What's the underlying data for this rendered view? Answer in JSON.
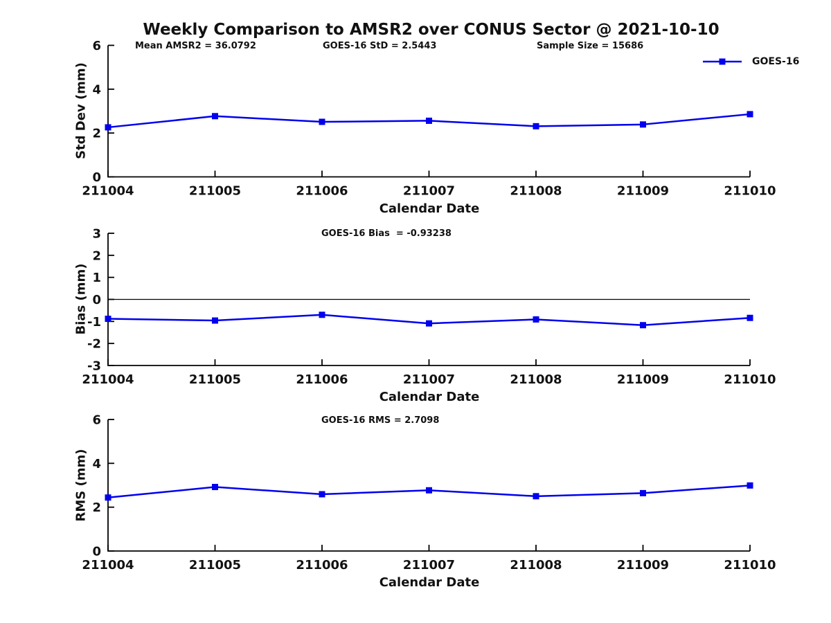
{
  "title": "Weekly Comparison to AMSR2 over CONUS Sector @ 2021-10-10",
  "legend": {
    "label": "GOES-16"
  },
  "colors": {
    "series": "#0000EE",
    "axis": "#000000",
    "text": "#111111",
    "background": "#FFFFFF"
  },
  "chart_data": [
    {
      "id": "std-dev",
      "type": "line",
      "ylabel": "Std Dev (mm)",
      "xlabel": "Calendar Date",
      "x": [
        211004,
        211005,
        211006,
        211007,
        211008,
        211009,
        211010
      ],
      "series": [
        {
          "name": "GOES-16",
          "values": [
            2.26,
            2.77,
            2.51,
            2.56,
            2.31,
            2.39,
            2.86
          ]
        }
      ],
      "ylim": [
        0,
        6
      ],
      "yticks": [
        0,
        2,
        4,
        6
      ],
      "grid": false,
      "legend_position": "top-right",
      "annotations": [
        "Mean AMSR2 = 36.0792",
        "GOES-16 StD = 2.5443",
        "Sample Size = 15686"
      ]
    },
    {
      "id": "bias",
      "type": "line",
      "ylabel": "Bias (mm)",
      "xlabel": "Calendar Date",
      "x": [
        211004,
        211005,
        211006,
        211007,
        211008,
        211009,
        211010
      ],
      "series": [
        {
          "name": "GOES-16",
          "values": [
            -0.88,
            -0.96,
            -0.7,
            -1.09,
            -0.91,
            -1.17,
            -0.84
          ]
        }
      ],
      "ylim": [
        -3,
        3
      ],
      "yticks": [
        -3,
        -2,
        -1,
        0,
        1,
        2,
        3
      ],
      "zero_line": true,
      "grid": false,
      "annotations": [
        "GOES-16 Bias  = -0.93238"
      ]
    },
    {
      "id": "rms",
      "type": "line",
      "ylabel": "RMS (mm)",
      "xlabel": "Calendar Date",
      "x": [
        211004,
        211005,
        211006,
        211007,
        211008,
        211009,
        211010
      ],
      "series": [
        {
          "name": "GOES-16",
          "values": [
            2.44,
            2.92,
            2.59,
            2.77,
            2.5,
            2.64,
            2.99
          ]
        }
      ],
      "ylim": [
        0,
        6
      ],
      "yticks": [
        0,
        2,
        4,
        6
      ],
      "grid": false,
      "annotations": [
        "GOES-16 RMS = 2.7098"
      ]
    }
  ]
}
